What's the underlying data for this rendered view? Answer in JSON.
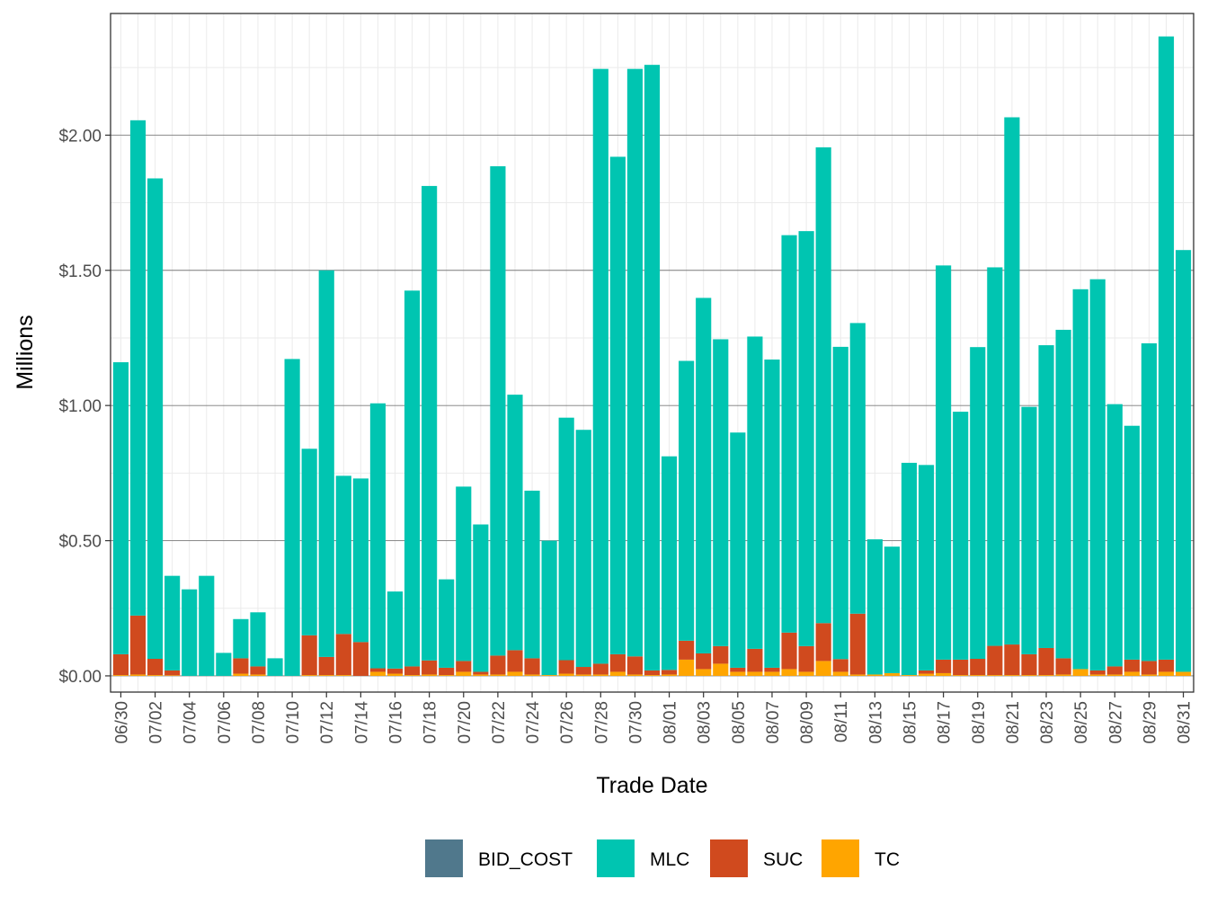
{
  "chart_data": {
    "type": "bar",
    "stacked": true,
    "xlabel": "Trade Date",
    "ylabel": "Millions",
    "ylim": [
      -0.06,
      2.45
    ],
    "y_ticks": [
      0,
      0.5,
      1.0,
      1.5,
      2.0
    ],
    "y_tick_labels": [
      "$0.00",
      "$0.50",
      "$1.00",
      "$1.50",
      "$2.00"
    ],
    "grid": true,
    "legend_position": "bottom",
    "categories": [
      "06/30",
      "07/01",
      "07/02",
      "07/03",
      "07/04",
      "07/05",
      "07/06",
      "07/07",
      "07/08",
      "07/09",
      "07/10",
      "07/11",
      "07/12",
      "07/13",
      "07/14",
      "07/15",
      "07/16",
      "07/17",
      "07/18",
      "07/19",
      "07/20",
      "07/21",
      "07/22",
      "07/23",
      "07/24",
      "07/25",
      "07/26",
      "07/27",
      "07/28",
      "07/29",
      "07/30",
      "07/31",
      "08/01",
      "08/02",
      "08/03",
      "08/04",
      "08/05",
      "08/06",
      "08/07",
      "08/08",
      "08/09",
      "08/10",
      "08/11",
      "08/12",
      "08/13",
      "08/14",
      "08/15",
      "08/16",
      "08/17",
      "08/18",
      "08/19",
      "08/20",
      "08/21",
      "08/22",
      "08/23",
      "08/24",
      "08/25",
      "08/26",
      "08/27",
      "08/28",
      "08/29",
      "08/30",
      "08/31"
    ],
    "x_tick_labels": [
      "06/30",
      "07/02",
      "07/04",
      "07/06",
      "07/08",
      "07/10",
      "07/12",
      "07/14",
      "07/16",
      "07/18",
      "07/20",
      "07/22",
      "07/24",
      "07/26",
      "07/28",
      "07/30",
      "08/01",
      "08/03",
      "08/05",
      "08/07",
      "08/09",
      "08/11",
      "08/13",
      "08/15",
      "08/17",
      "08/19",
      "08/21",
      "08/23",
      "08/25",
      "08/27",
      "08/29",
      "08/31"
    ],
    "series": [
      {
        "name": "TC",
        "color": "#FFA500",
        "values": [
          0.003,
          0.005,
          0.003,
          0.002,
          0.0,
          0.0,
          0.0,
          0.008,
          0.005,
          0.0,
          0.0,
          0.003,
          0.003,
          0.003,
          0.0,
          0.015,
          0.008,
          0.003,
          0.005,
          0.003,
          0.015,
          0.005,
          0.005,
          0.015,
          0.005,
          0.003,
          0.008,
          0.005,
          0.005,
          0.015,
          0.005,
          0.003,
          0.005,
          0.06,
          0.025,
          0.045,
          0.015,
          0.015,
          0.015,
          0.025,
          0.015,
          0.055,
          0.015,
          0.005,
          0.005,
          0.01,
          0.003,
          0.008,
          0.01,
          0.003,
          0.003,
          0.003,
          0.003,
          0.003,
          0.003,
          0.005,
          0.025,
          0.005,
          0.005,
          0.015,
          0.005,
          0.015,
          0.015
        ]
      },
      {
        "name": "SUC",
        "color": "#D04A1E",
        "values": [
          0.077,
          0.218,
          0.06,
          0.018,
          0.0,
          0.0,
          0.0,
          0.057,
          0.03,
          0.0,
          0.0,
          0.147,
          0.067,
          0.152,
          0.125,
          0.013,
          0.019,
          0.032,
          0.052,
          0.027,
          0.04,
          0.01,
          0.07,
          0.08,
          0.06,
          0.0,
          0.05,
          0.028,
          0.04,
          0.065,
          0.067,
          0.017,
          0.017,
          0.07,
          0.058,
          0.065,
          0.015,
          0.085,
          0.015,
          0.135,
          0.095,
          0.14,
          0.047,
          0.225,
          0.0,
          0.0,
          0.0,
          0.012,
          0.05,
          0.057,
          0.06,
          0.108,
          0.113,
          0.077,
          0.1,
          0.06,
          0.0,
          0.015,
          0.03,
          0.045,
          0.05,
          0.045,
          0.0
        ]
      },
      {
        "name": "MLC",
        "color": "#00C5B1",
        "values": [
          1.08,
          1.832,
          1.777,
          0.35,
          0.32,
          0.37,
          0.085,
          0.145,
          0.2,
          0.065,
          1.172,
          0.69,
          1.43,
          0.585,
          0.605,
          0.98,
          0.285,
          1.39,
          1.755,
          0.327,
          0.645,
          0.545,
          1.81,
          0.945,
          0.62,
          0.497,
          0.897,
          0.877,
          2.2,
          1.84,
          2.173,
          2.24,
          0.79,
          1.035,
          1.315,
          1.135,
          0.87,
          1.155,
          1.14,
          1.47,
          1.535,
          1.76,
          1.155,
          1.075,
          0.5,
          0.468,
          0.785,
          0.76,
          1.458,
          0.917,
          1.153,
          1.4,
          1.95,
          0.915,
          1.12,
          1.215,
          1.405,
          1.447,
          0.97,
          0.865,
          1.175,
          2.305,
          1.56
        ]
      },
      {
        "name": "BID_COST",
        "color": "#50788C",
        "values": [
          0,
          0,
          0,
          0,
          0,
          0,
          0,
          0,
          0,
          0,
          0,
          0,
          0,
          0,
          0,
          0,
          0,
          0,
          0,
          0,
          0,
          0,
          0,
          0,
          0,
          0,
          0,
          0,
          0,
          0,
          0,
          0,
          0,
          0,
          0,
          0,
          0,
          0,
          0,
          0,
          0,
          0,
          0,
          0,
          0,
          0,
          0,
          0,
          0,
          0,
          0,
          0,
          0,
          0,
          0,
          0,
          0,
          0,
          0,
          0,
          0,
          0,
          0
        ]
      }
    ],
    "legend_order": [
      "BID_COST",
      "MLC",
      "SUC",
      "TC"
    ]
  }
}
